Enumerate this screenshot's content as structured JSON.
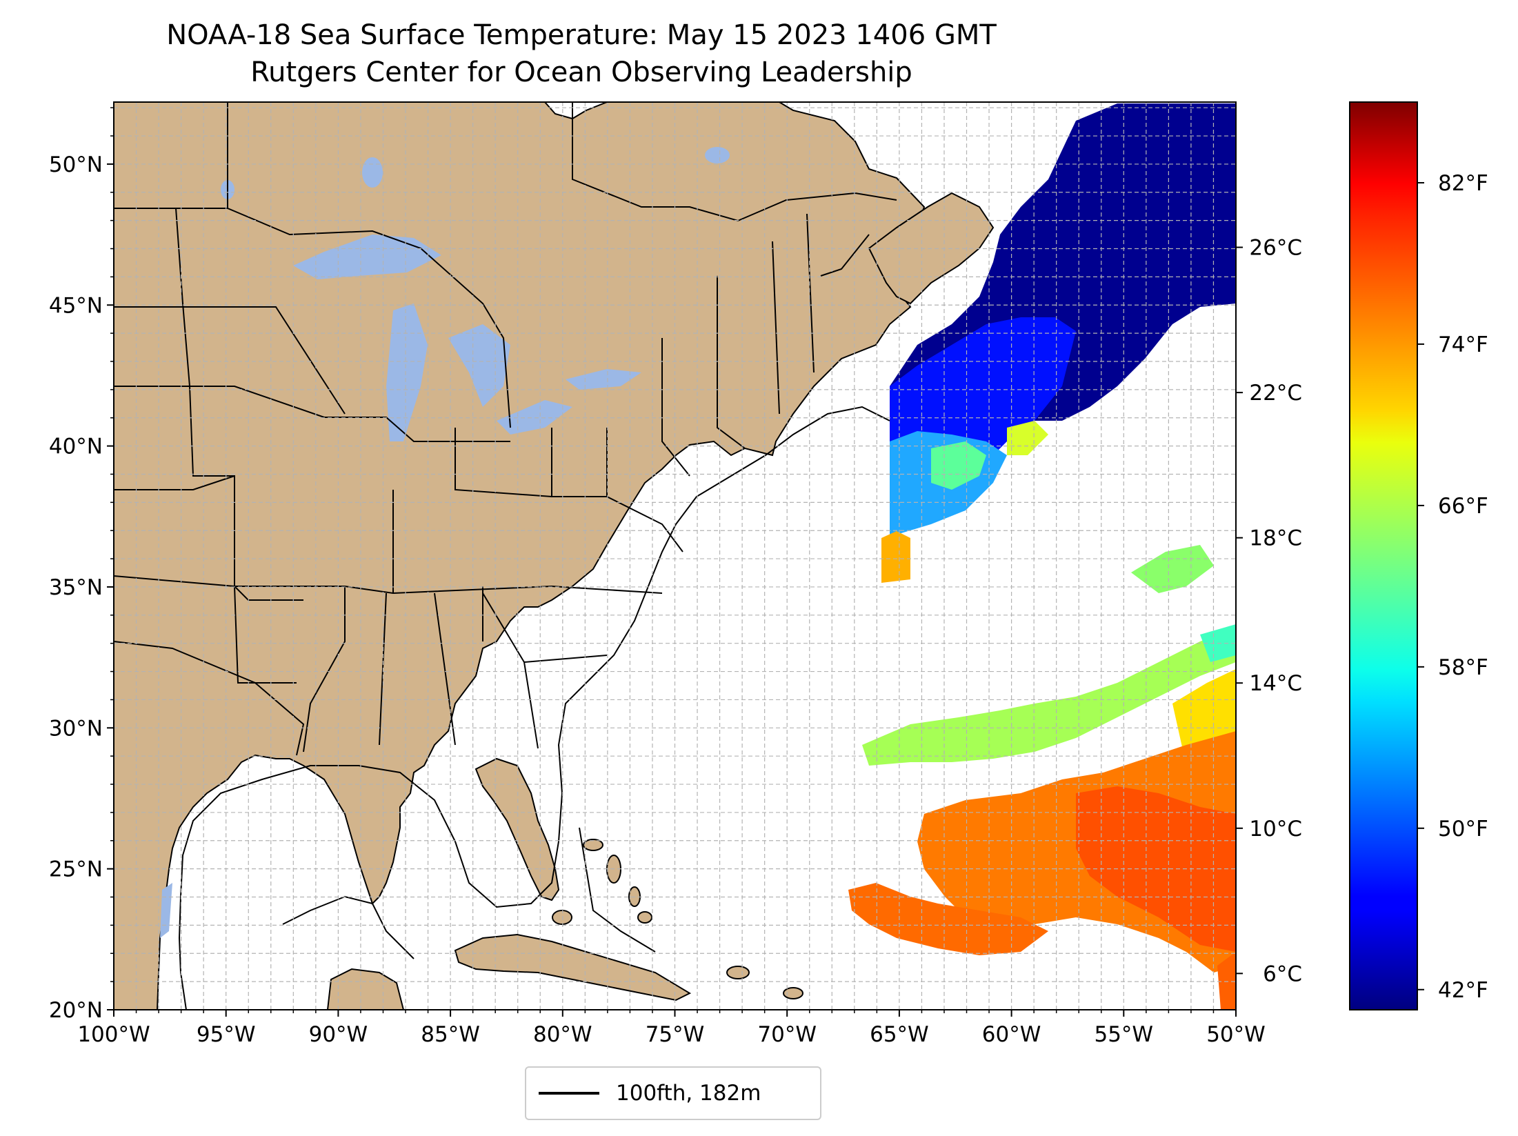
{
  "title": "NOAA-18 Sea Surface Temperature: May 15 2023 1406 GMT",
  "subtitle": "Rutgers Center for Ocean Observing Leadership",
  "colors": {
    "land": "#d2b48c",
    "lakes": "#9bb8e6",
    "ocean_nodata": "#ffffff",
    "grid": "#b3b3b3",
    "border": "#000000"
  },
  "map": {
    "lon_range": [
      -100,
      -50
    ],
    "lat_range": [
      20,
      52.2
    ],
    "x_ticks": [
      "100°W",
      "95°W",
      "90°W",
      "85°W",
      "80°W",
      "75°W",
      "70°W",
      "65°W",
      "60°W",
      "55°W",
      "50°W"
    ],
    "y_ticks": [
      "20°N",
      "25°N",
      "30°N",
      "35°N",
      "40°N",
      "45°N",
      "50°N"
    ],
    "gridlines": "on, 1° spacing, dashed",
    "contour": "100 fathom isobath"
  },
  "legend": {
    "placement": "bottom-center",
    "entries": [
      {
        "label": "100fth, 182m",
        "style": "black line"
      }
    ]
  },
  "colorbar": {
    "colormap": "jet",
    "range_c": [
      5.0,
      30.0
    ],
    "celsius_ticks": [
      "6°C",
      "10°C",
      "14°C",
      "18°C",
      "22°C",
      "26°C"
    ],
    "fahrenheit_ticks": [
      "42°F",
      "50°F",
      "58°F",
      "66°F",
      "74°F",
      "82°F"
    ],
    "celsius_values": [
      6,
      10,
      14,
      18,
      22,
      26
    ],
    "fahrenheit_values": [
      42,
      50,
      58,
      66,
      74,
      82
    ]
  }
}
